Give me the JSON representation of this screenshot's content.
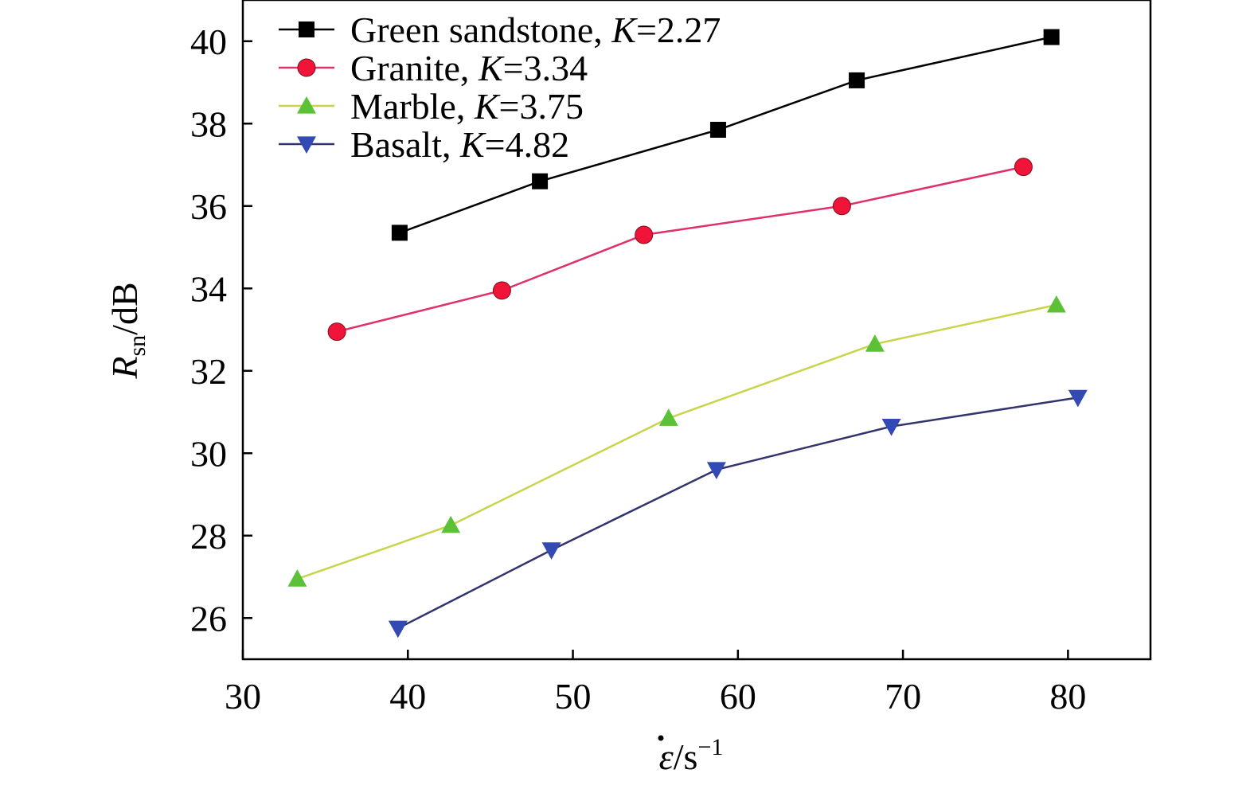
{
  "chart_data": {
    "type": "line",
    "title": "",
    "xlabel": "ε̇/s⁻¹",
    "ylabel": "Rsn/dB",
    "xlim": [
      30,
      85
    ],
    "ylim": [
      25,
      41
    ],
    "x_ticks": [
      30,
      40,
      50,
      60,
      70,
      80
    ],
    "y_ticks": [
      26,
      28,
      30,
      32,
      34,
      36,
      38,
      40
    ],
    "grid": false,
    "legend_position": "top-left",
    "series": [
      {
        "name": "Green sandstone, K=2.27",
        "name_parts": {
          "prefix": "Green sandstone, ",
          "italic": "K",
          "suffix": "=2.27"
        },
        "marker": "square",
        "line_color": "#000000",
        "marker_color": "#000000",
        "points": [
          [
            39.5,
            35.35
          ],
          [
            48.0,
            36.6
          ],
          [
            58.8,
            37.85
          ],
          [
            67.2,
            39.05
          ],
          [
            79.0,
            40.1
          ]
        ]
      },
      {
        "name": "Granite, K=3.34",
        "name_parts": {
          "prefix": "Granite, ",
          "italic": "K",
          "suffix": "=3.34"
        },
        "marker": "circle",
        "line_color": "#e0306a",
        "marker_color": "#f01438",
        "points": [
          [
            35.7,
            32.95
          ],
          [
            45.7,
            33.95
          ],
          [
            54.3,
            35.3
          ],
          [
            66.3,
            36.0
          ],
          [
            77.3,
            36.95
          ]
        ]
      },
      {
        "name": "Marble, K=3.75",
        "name_parts": {
          "prefix": "Marble, ",
          "italic": "K",
          "suffix": "=3.75"
        },
        "marker": "triangle-up",
        "line_color": "#c8d44a",
        "marker_color": "#5cc136",
        "points": [
          [
            33.3,
            26.95
          ],
          [
            42.6,
            28.25
          ],
          [
            55.8,
            30.85
          ],
          [
            68.3,
            32.65
          ],
          [
            79.3,
            33.6
          ]
        ]
      },
      {
        "name": "Basalt, K=4.82",
        "name_parts": {
          "prefix": "Basalt, ",
          "italic": "K",
          "suffix": "=4.82"
        },
        "marker": "triangle-down",
        "line_color": "#33336e",
        "marker_color": "#3349b3",
        "points": [
          [
            39.4,
            25.75
          ],
          [
            48.7,
            27.65
          ],
          [
            58.7,
            29.6
          ],
          [
            69.3,
            30.65
          ],
          [
            80.6,
            31.35
          ]
        ]
      }
    ]
  }
}
